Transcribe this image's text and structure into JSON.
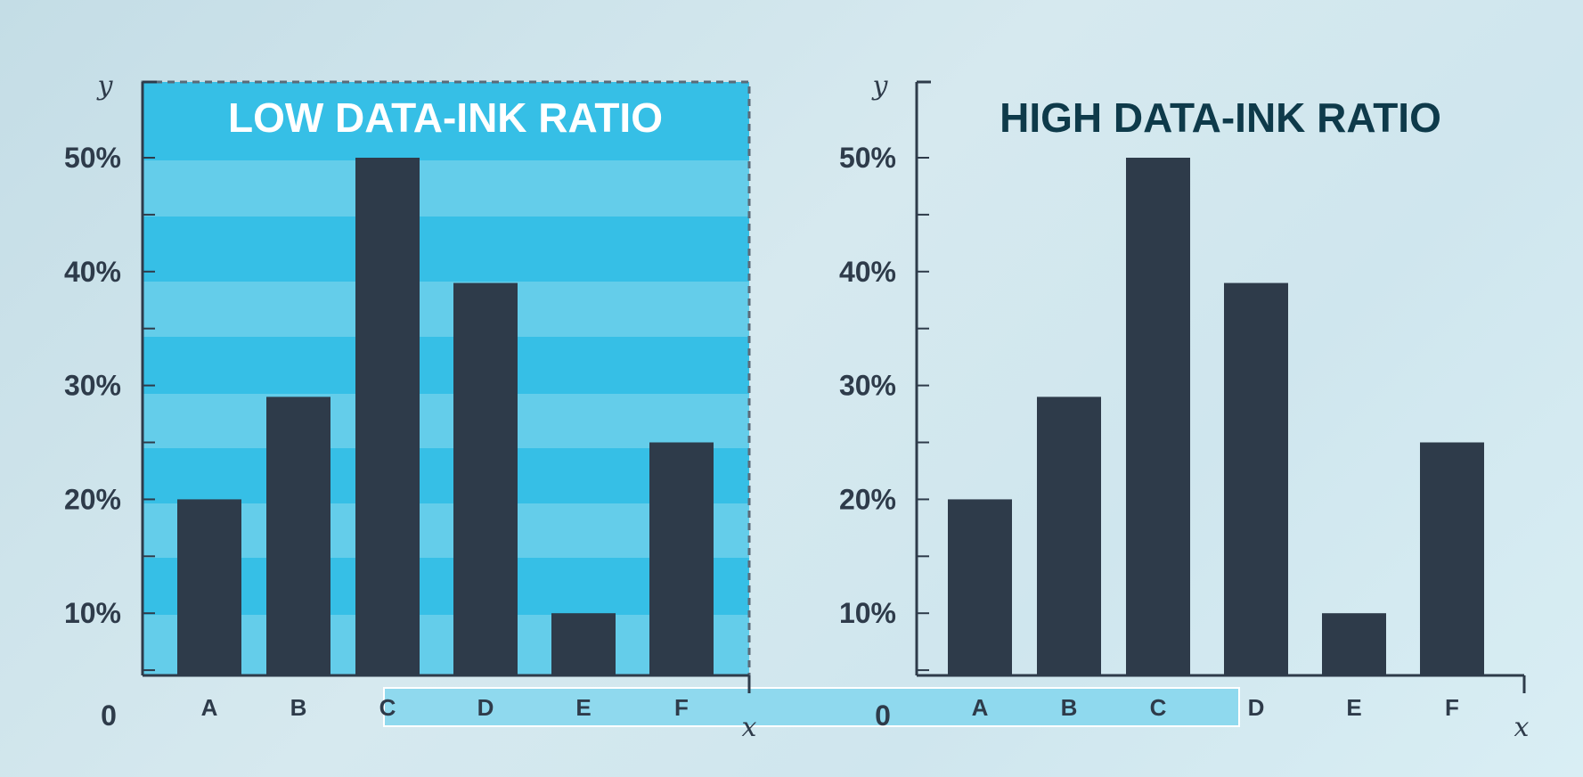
{
  "colors": {
    "bar": "#2e3b4a",
    "axis": "#2e3b4a",
    "band_dark": "#36bfe6",
    "band_light": "#64cdea",
    "highlight_strip": "#8fd9ee",
    "title_low": "#ffffff",
    "title_high": "#0e3a4a"
  },
  "chart_data": [
    {
      "type": "bar",
      "title": "LOW DATA-INK RATIO",
      "xlabel": "x",
      "ylabel": "y",
      "categories": [
        "A",
        "B",
        "C",
        "D",
        "E",
        "F"
      ],
      "values": [
        20,
        29,
        50,
        39,
        10,
        25
      ],
      "yticks": [
        "0",
        "10%",
        "20%",
        "30%",
        "40%",
        "50%"
      ],
      "ylim": [
        0,
        55
      ],
      "grid": "striped background bands",
      "frame": "dashed border"
    },
    {
      "type": "bar",
      "title": "HIGH DATA-INK RATIO",
      "xlabel": "x",
      "ylabel": "y",
      "categories": [
        "A",
        "B",
        "C",
        "D",
        "E",
        "F"
      ],
      "values": [
        20,
        29,
        50,
        39,
        10,
        25
      ],
      "yticks": [
        "0",
        "10%",
        "20%",
        "30%",
        "40%",
        "50%"
      ],
      "ylim": [
        0,
        55
      ],
      "grid": "none"
    }
  ]
}
